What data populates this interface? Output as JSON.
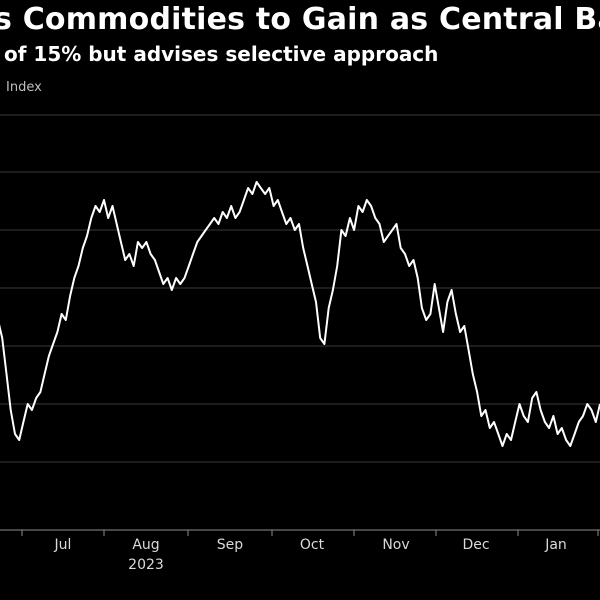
{
  "header": {
    "title": "s Commodities to Gain as Central Ba",
    "subtitle": "of 15% but advises selective approach"
  },
  "chart_data": {
    "type": "line",
    "ylabel": "Index",
    "x_ticks": [
      "Jul",
      "Aug",
      "Sep",
      "Oct",
      "Nov",
      "Dec",
      "Jan"
    ],
    "year_label": "2023",
    "grid": "horizontal",
    "series": [
      {
        "color": "#ffffff",
        "values": [
          75,
          72,
          66,
          60,
          56,
          55,
          58,
          61,
          60,
          62,
          63,
          66,
          69,
          71,
          73,
          76,
          75,
          79,
          82,
          84,
          87,
          89,
          92,
          94,
          93,
          95,
          92,
          94,
          91,
          88,
          85,
          86,
          84,
          88,
          87,
          88,
          86,
          85,
          83,
          81,
          82,
          80,
          82,
          81,
          82,
          84,
          86,
          88,
          89,
          90,
          91,
          92,
          91,
          93,
          92,
          94,
          92,
          93,
          95,
          97,
          96,
          98,
          97,
          96,
          97,
          94,
          95,
          93,
          91,
          92,
          90,
          91,
          87,
          84,
          81,
          78,
          72,
          71,
          77,
          80,
          84,
          90,
          89,
          92,
          90,
          94,
          93,
          95,
          94,
          92,
          91,
          88,
          89,
          90,
          91,
          87,
          86,
          84,
          85,
          82,
          77,
          75,
          76,
          81,
          77,
          73,
          78,
          80,
          76,
          73,
          74,
          70,
          66,
          63,
          59,
          60,
          57,
          58,
          56,
          54,
          56,
          55,
          58,
          61,
          59,
          58,
          62,
          63,
          60,
          58,
          57,
          59,
          56,
          57,
          55,
          54,
          56,
          58,
          59,
          61,
          60,
          58,
          61
        ]
      }
    ]
  }
}
